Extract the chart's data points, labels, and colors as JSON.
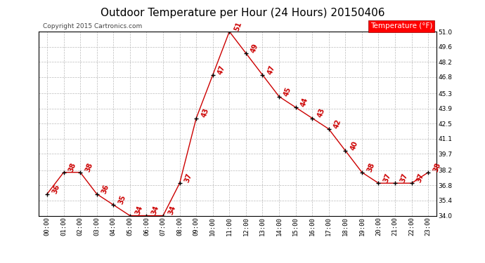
{
  "title": "Outdoor Temperature per Hour (24 Hours) 20150406",
  "copyright_text": "Copyright 2015 Cartronics.com",
  "legend_label": "Temperature (°F)",
  "hours": [
    "00:00",
    "01:00",
    "02:00",
    "03:00",
    "04:00",
    "05:00",
    "06:00",
    "07:00",
    "08:00",
    "09:00",
    "10:00",
    "11:00",
    "12:00",
    "13:00",
    "14:00",
    "15:00",
    "16:00",
    "17:00",
    "18:00",
    "19:00",
    "20:00",
    "21:00",
    "22:00",
    "23:00"
  ],
  "temps": [
    36,
    38,
    38,
    36,
    35,
    34,
    34,
    34,
    37,
    43,
    47,
    51,
    49,
    47,
    45,
    44,
    43,
    42,
    40,
    38,
    37,
    37,
    37,
    38
  ],
  "line_color": "#cc0000",
  "marker_color": "#000000",
  "label_color": "#cc0000",
  "bg_color": "#ffffff",
  "grid_color": "#bbbbbb",
  "ylim_min": 34.0,
  "ylim_max": 51.0,
  "yticks": [
    34.0,
    35.4,
    36.8,
    38.2,
    39.7,
    41.1,
    42.5,
    43.9,
    45.3,
    46.8,
    48.2,
    49.6,
    51.0
  ],
  "title_fontsize": 11,
  "label_fontsize": 7,
  "tick_fontsize": 6.5,
  "copyright_fontsize": 6.5,
  "legend_fontsize": 7.5
}
